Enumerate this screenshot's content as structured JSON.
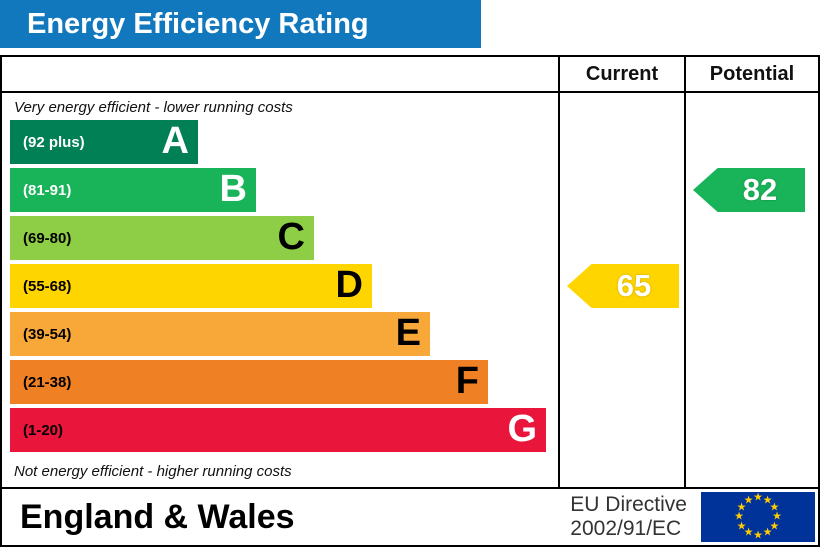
{
  "title": "Energy Efficiency Rating",
  "header": {
    "current": "Current",
    "potential": "Potential"
  },
  "top_note": "Very energy efficient - lower running costs",
  "bottom_note": "Not energy efficient - higher running costs",
  "footer": {
    "region": "England & Wales",
    "directive_line1": "EU Directive",
    "directive_line2": "2002/91/EC"
  },
  "colors": {
    "title_bar_bg": "#1278be",
    "eu_flag_blue": "#003399",
    "eu_flag_star": "#ffcc00"
  },
  "chart_data": {
    "type": "bar",
    "title": "Energy Efficiency Rating",
    "columns": [
      "Current",
      "Potential"
    ],
    "bands": [
      {
        "letter": "A",
        "range": "(92 plus)",
        "min": 92,
        "max": 100,
        "color": "#008054"
      },
      {
        "letter": "B",
        "range": "(81-91)",
        "min": 81,
        "max": 91,
        "color": "#19b459"
      },
      {
        "letter": "C",
        "range": "(69-80)",
        "min": 69,
        "max": 80,
        "color": "#8dce46"
      },
      {
        "letter": "D",
        "range": "(55-68)",
        "min": 55,
        "max": 68,
        "color": "#ffd500"
      },
      {
        "letter": "E",
        "range": "(39-54)",
        "min": 39,
        "max": 54,
        "color": "#f7a839"
      },
      {
        "letter": "F",
        "range": "(21-38)",
        "min": 21,
        "max": 38,
        "color": "#ef8023"
      },
      {
        "letter": "G",
        "range": "(1-20)",
        "min": 1,
        "max": 20,
        "color": "#e9153b"
      }
    ],
    "current": {
      "value": 65,
      "band": "D",
      "color": "#ffd500"
    },
    "potential": {
      "value": 82,
      "band": "B",
      "color": "#19b459"
    }
  }
}
